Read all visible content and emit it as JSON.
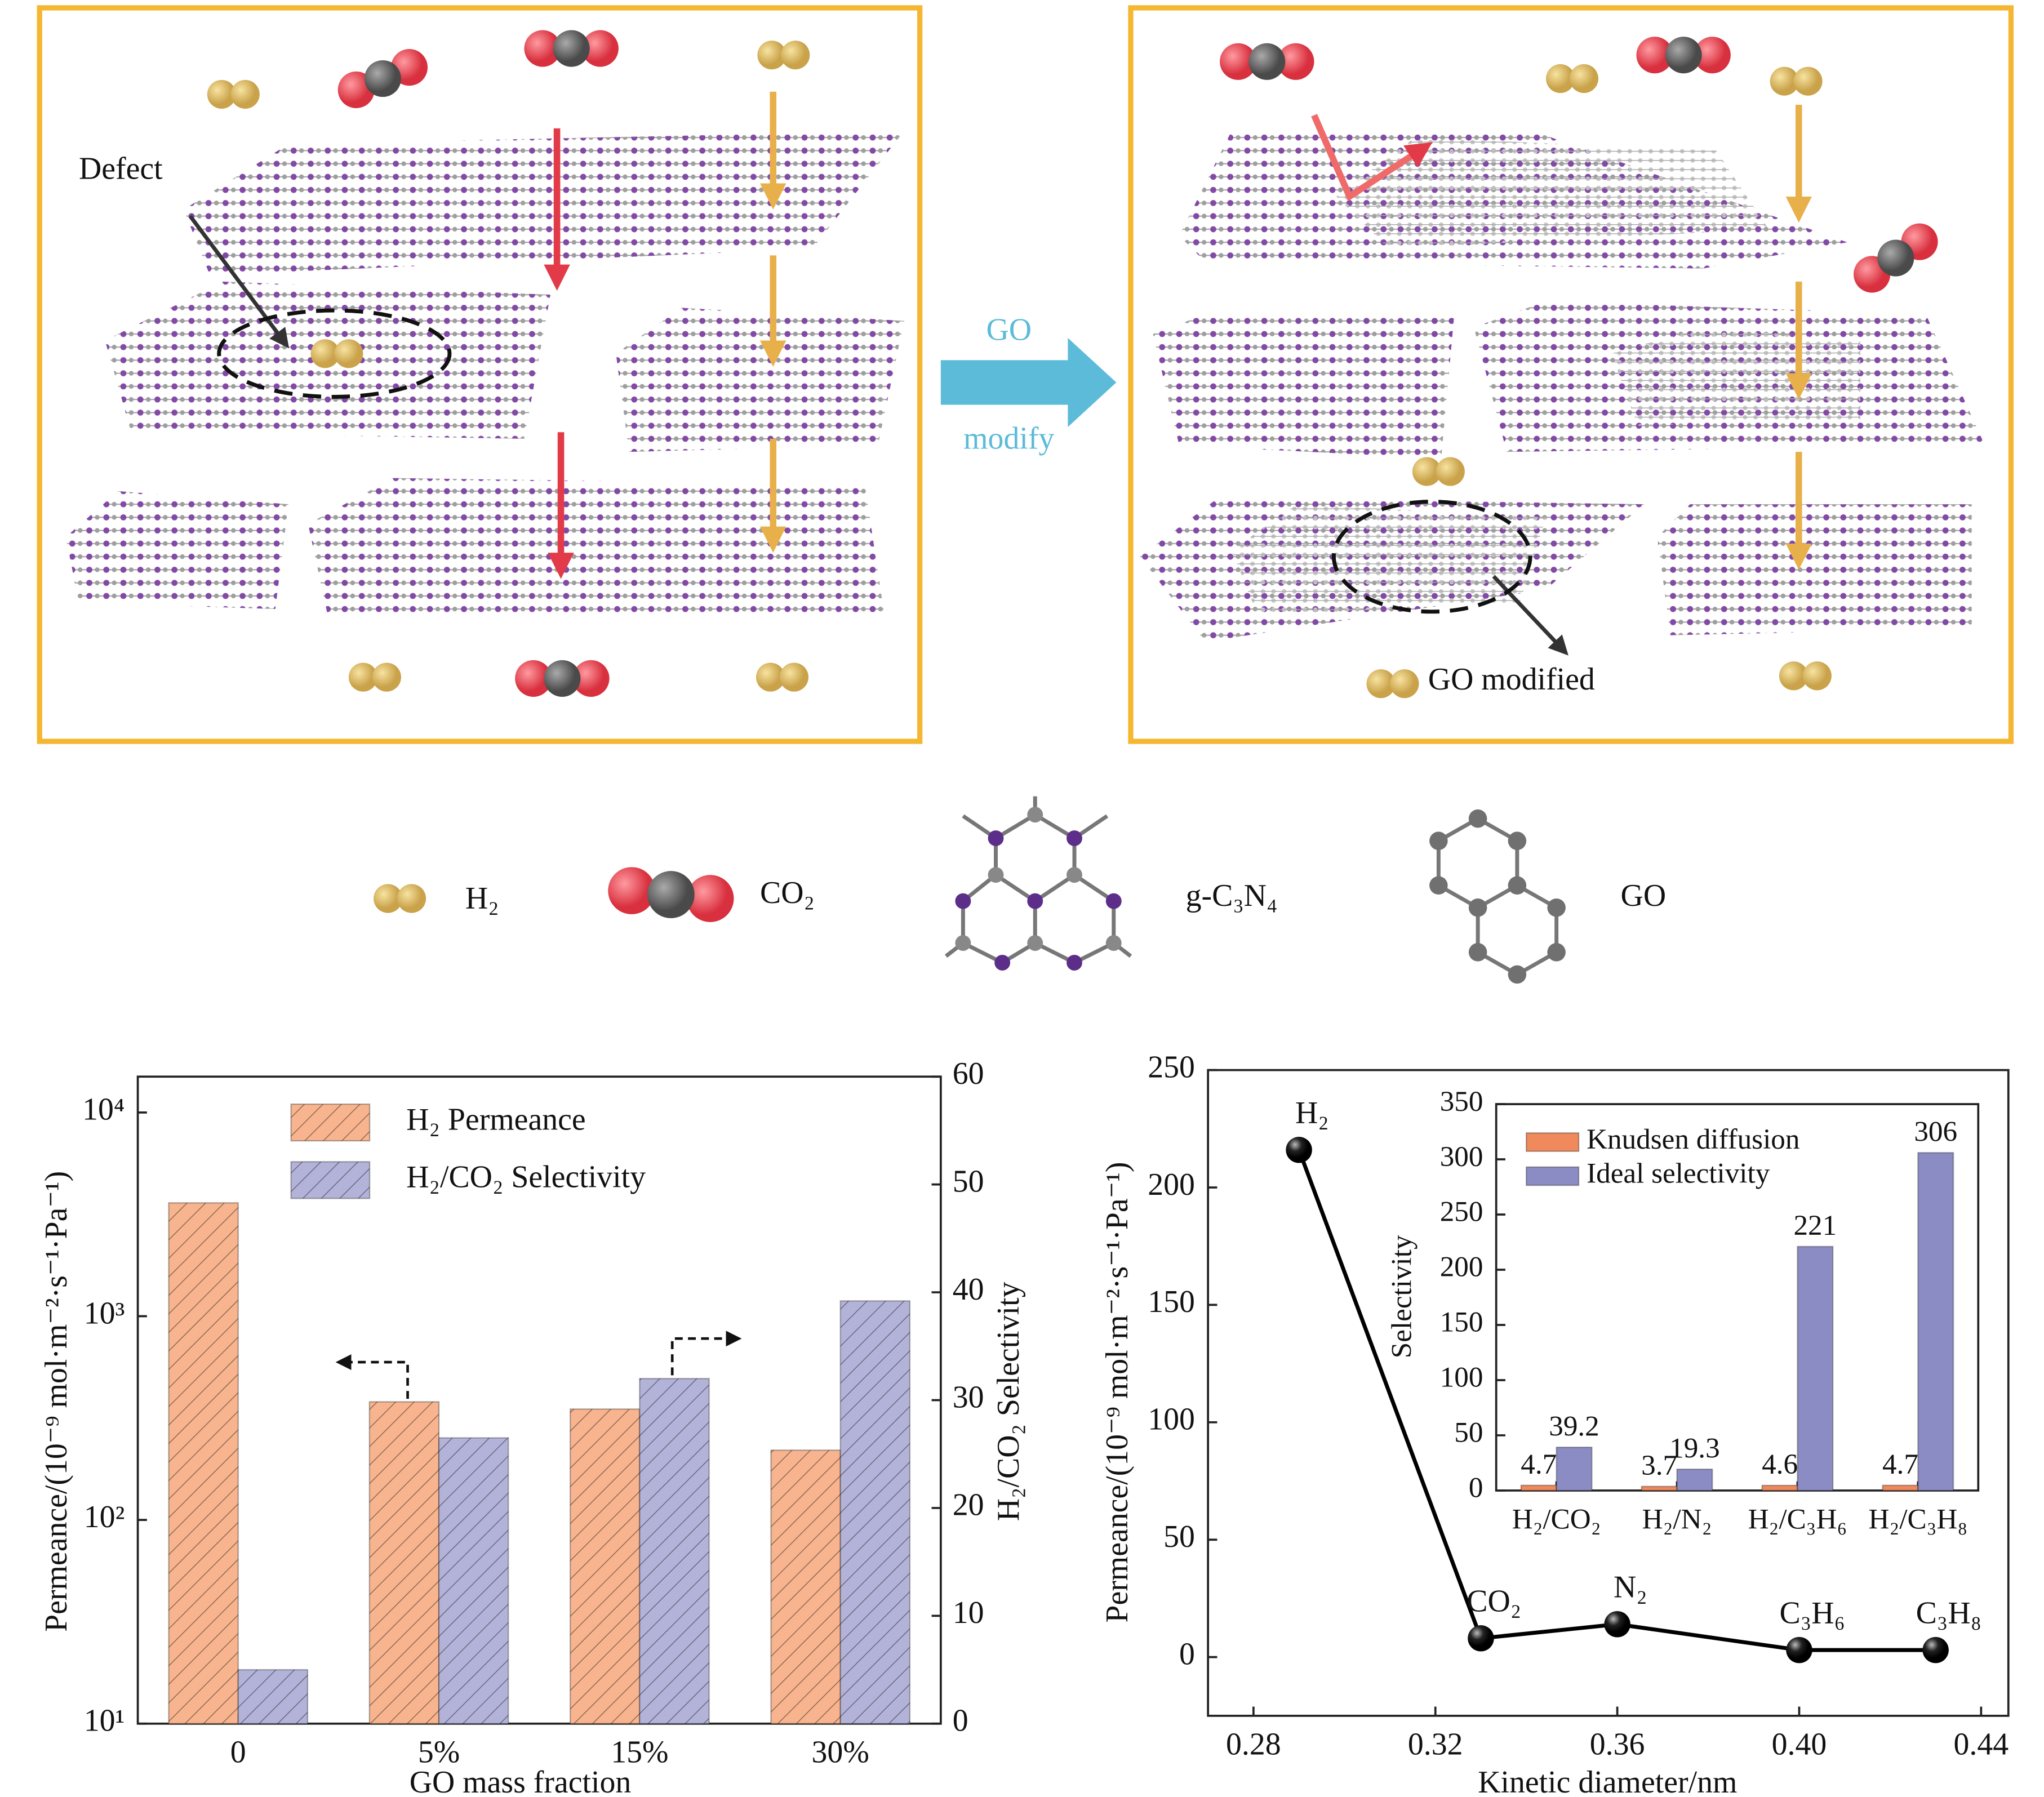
{
  "diagram": {
    "defect_label": "Defect",
    "arrow_top": "GO",
    "arrow_bottom": "modify",
    "modified_label": "GO modified",
    "legend": [
      "H₂",
      "CO₂",
      "g-C₃N₄",
      "GO"
    ]
  },
  "chart_data": [
    {
      "type": "bar",
      "categories": [
        "0",
        "5%",
        "15%",
        "30%"
      ],
      "series": [
        {
          "name": "H₂ Permeance",
          "color": "#f7b48e",
          "values": [
            3600,
            380,
            350,
            220
          ]
        },
        {
          "name": "H₂/CO₂ Selectivity",
          "color": "#b3b3da",
          "values": [
            5,
            26.5,
            32,
            39.2
          ],
          "axis": "y2"
        }
      ],
      "log_y": true,
      "ylim": [
        10,
        15000
      ],
      "yticks": [
        {
          "value": 10,
          "label": "10¹"
        },
        {
          "value": 100,
          "label": "10²"
        },
        {
          "value": 1000,
          "label": "10³"
        },
        {
          "value": 10000,
          "label": "10⁴"
        }
      ],
      "y2lim": [
        0,
        60
      ],
      "y2ticks": [
        0,
        10,
        20,
        30,
        40,
        50,
        60
      ],
      "xlabel": "GO mass fraction",
      "ylabel": "Permeance/(10⁻⁹ mol·m⁻²·s⁻¹·Pa⁻¹)",
      "y2label": "H₂/CO₂ Selectivity",
      "hatch": true
    },
    {
      "type": "line",
      "x": [
        0.29,
        0.33,
        0.36,
        0.4,
        0.43
      ],
      "values": [
        216,
        8,
        14,
        3,
        3
      ],
      "point_labels": [
        "H₂",
        "CO₂",
        "N₂",
        "C₃H₆",
        "C₃H₈"
      ],
      "color": "#000000",
      "xlim": [
        0.27,
        0.446
      ],
      "xticks": [
        0.28,
        0.32,
        0.36,
        {
          "value": 0.4,
          "label": "0.40"
        },
        0.44
      ],
      "ylim": [
        -25,
        250
      ],
      "yticks": [
        0,
        50,
        100,
        150,
        200,
        250
      ],
      "xlabel": "Kinetic diameter/nm",
      "ylabel": "Permeance/(10⁻⁹ mol·m⁻²·s⁻¹·Pa⁻¹)"
    },
    {
      "type": "bar",
      "categories": [
        "H₂/CO₂",
        "H₂/N₂",
        "H₂/C₃H₆",
        "H₂/C₃H₈"
      ],
      "series": [
        {
          "name": "Knudsen diffusion",
          "color": "#f08a5d",
          "values": [
            4.7,
            3.7,
            4.6,
            4.7
          ]
        },
        {
          "name": "Ideal selectivity",
          "color": "#8c8cc4",
          "values": [
            39.2,
            19.3,
            221,
            306
          ]
        }
      ],
      "ylim": [
        0,
        350
      ],
      "yticks": [
        0,
        50,
        100,
        150,
        200,
        250,
        300,
        350
      ],
      "ylabel": "Selectivity",
      "data_labels": true
    }
  ]
}
